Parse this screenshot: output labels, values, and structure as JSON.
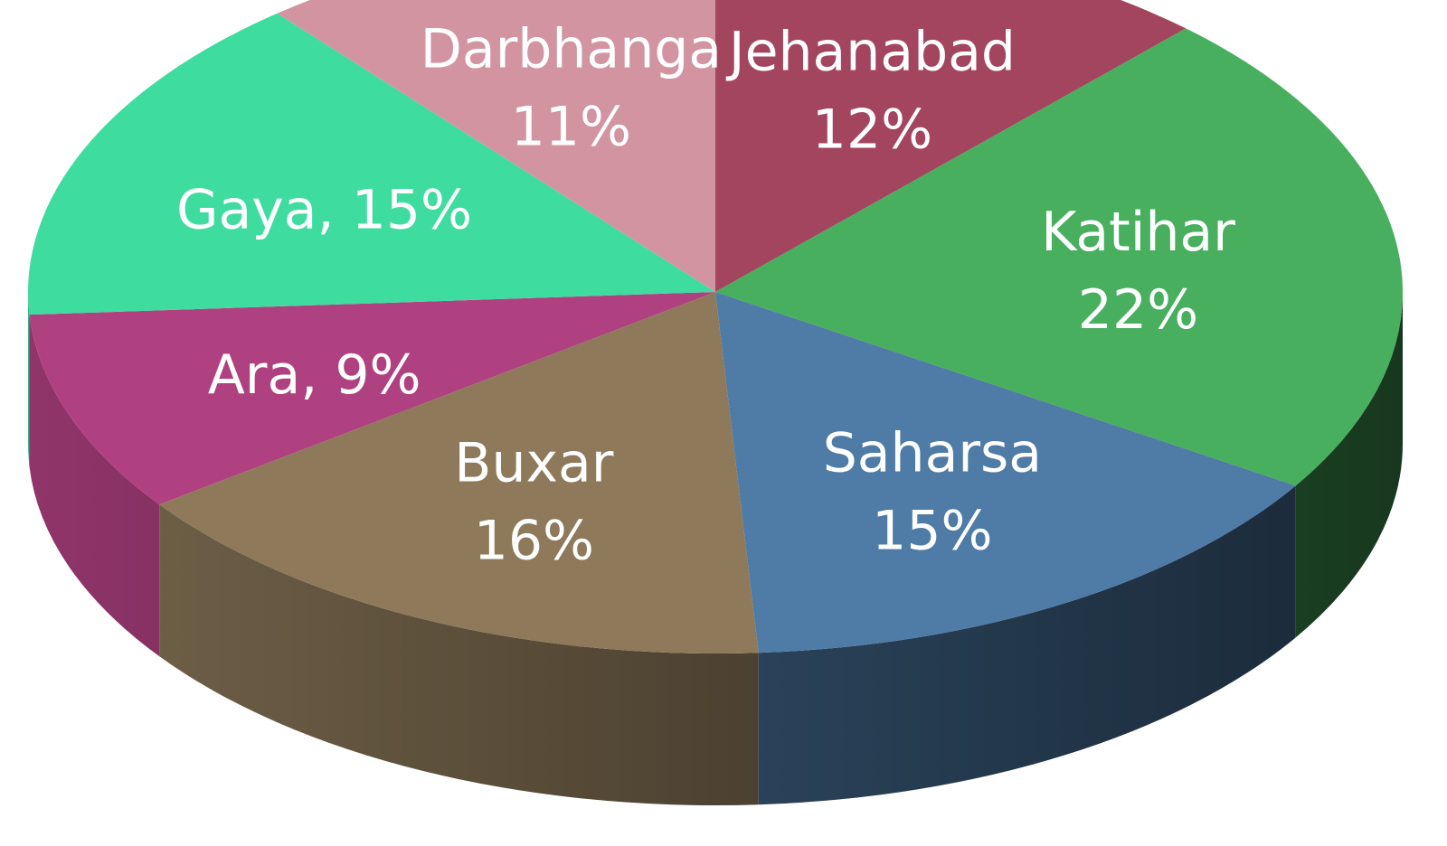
{
  "chart_data": {
    "type": "pie",
    "title": "",
    "legend": "none",
    "labels_on_slices": true,
    "series": [
      {
        "values": [
          {
            "category": "Jehanabad",
            "value": 12,
            "label": "12%",
            "color": "#A44560",
            "label_lines": [
              "Jehanabad",
              "12%"
            ]
          },
          {
            "category": "Katihar",
            "value": 22,
            "label": "22%",
            "color": "#47AF5E",
            "label_lines": [
              "Katihar",
              "22%"
            ]
          },
          {
            "category": "Saharsa",
            "value": 15,
            "label": "15%",
            "color": "#4F7BA7",
            "label_lines": [
              "Saharsa",
              "15%"
            ]
          },
          {
            "category": "Buxar",
            "value": 16,
            "label": "16%",
            "color": "#8E7A5A",
            "label_lines": [
              "Buxar",
              "16%"
            ]
          },
          {
            "category": "Ara",
            "value": 9,
            "label": "9%",
            "color": "#B04181",
            "label_lines": [
              "Ara, 9%"
            ]
          },
          {
            "category": "Gaya",
            "value": 15,
            "label": "15%",
            "color": "#3FDCA0",
            "label_lines": [
              "Gaya, 15%"
            ]
          },
          {
            "category": "Darbhanga",
            "value": 11,
            "label": "11%",
            "color": "#D394A2",
            "label_lines": [
              "Darbhanga",
              "11%"
            ]
          }
        ]
      }
    ]
  }
}
